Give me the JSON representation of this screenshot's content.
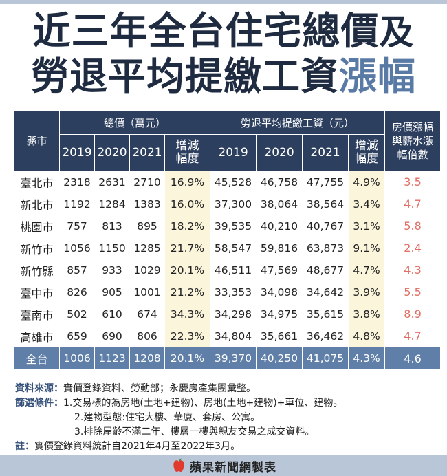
{
  "title": {
    "line1": "近三年全台住宅總價",
    "line1_end": "及",
    "line2": "勞退平均提繳工資",
    "line2_highlight": "漲幅"
  },
  "table": {
    "header": {
      "city": "縣市",
      "total_price": "總價（萬元）",
      "wage": "勞退平均提繳工資（元）",
      "ratio": "房價漲幅與薪水漲幅倍數",
      "years": [
        "2019",
        "2020",
        "2021"
      ],
      "growth": "增減幅度"
    },
    "rows": [
      {
        "city": "臺北市",
        "p2019": "2318",
        "p2020": "2631",
        "p2021": "2710",
        "pg": "16.9%",
        "w2019": "45,528",
        "w2020": "46,758",
        "w2021": "47,755",
        "wg": "4.9%",
        "ratio": "3.5"
      },
      {
        "city": "新北市",
        "p2019": "1192",
        "p2020": "1284",
        "p2021": "1383",
        "pg": "16.0%",
        "w2019": "37,300",
        "w2020": "38,064",
        "w2021": "38,564",
        "wg": "3.4%",
        "ratio": "4.7"
      },
      {
        "city": "桃園市",
        "p2019": "757",
        "p2020": "813",
        "p2021": "895",
        "pg": "18.2%",
        "w2019": "39,535",
        "w2020": "40,210",
        "w2021": "40,767",
        "wg": "3.1%",
        "ratio": "5.8"
      },
      {
        "city": "新竹市",
        "p2019": "1056",
        "p2020": "1150",
        "p2021": "1285",
        "pg": "21.7%",
        "w2019": "58,547",
        "w2020": "59,816",
        "w2021": "63,873",
        "wg": "9.1%",
        "ratio": "2.4"
      },
      {
        "city": "新竹縣",
        "p2019": "857",
        "p2020": "933",
        "p2021": "1029",
        "pg": "20.1%",
        "w2019": "46,511",
        "w2020": "47,569",
        "w2021": "48,677",
        "wg": "4.7%",
        "ratio": "4.3"
      },
      {
        "city": "臺中市",
        "p2019": "826",
        "p2020": "905",
        "p2021": "1001",
        "pg": "21.2%",
        "w2019": "33,353",
        "w2020": "34,098",
        "w2021": "34,642",
        "wg": "3.9%",
        "ratio": "5.5"
      },
      {
        "city": "臺南市",
        "p2019": "502",
        "p2020": "610",
        "p2021": "674",
        "pg": "34.3%",
        "w2019": "34,298",
        "w2020": "34,975",
        "w2021": "35,615",
        "wg": "3.8%",
        "ratio": "8.9"
      },
      {
        "city": "高雄市",
        "p2019": "659",
        "p2020": "690",
        "p2021": "806",
        "pg": "22.3%",
        "w2019": "34,804",
        "w2020": "35,661",
        "w2021": "36,462",
        "wg": "4.8%",
        "ratio": "4.7"
      }
    ],
    "total": {
      "city": "全台",
      "p2019": "1006",
      "p2020": "1123",
      "p2021": "1208",
      "pg": "20.1%",
      "w2019": "39,370",
      "w2020": "40,250",
      "w2021": "41,075",
      "wg": "4.3%",
      "ratio": "4.6"
    }
  },
  "notes": {
    "source_label": "資料來源：",
    "source_text": "實價登錄資料、勞動部；永慶房產集團彙整。",
    "filter_label": "篩選條件：",
    "filter_1": "1.交易標的為房地(土地+建物)、房地(土地+建物)+車位、建物。",
    "filter_2": "2.建物型態:住宅大樓、華廈、套房、公寓。",
    "filter_3": "3.排除屋齡不滿二年、樓層一樓與親友交易之成交資料。",
    "remark_label": "註：",
    "remark_text": "實價登錄資料統計自2021年4月至2022年3月。"
  },
  "footer": {
    "brand": "蘋果新聞網製表",
    "icon": "apple-logo-icon"
  },
  "colors": {
    "header_bg": "#2c3f5f",
    "total_row_bg": "#5f7fa8",
    "growth_bg": "#fbf5dc",
    "ratio_text": "#e06e63",
    "accent": "#5a7aa6"
  }
}
